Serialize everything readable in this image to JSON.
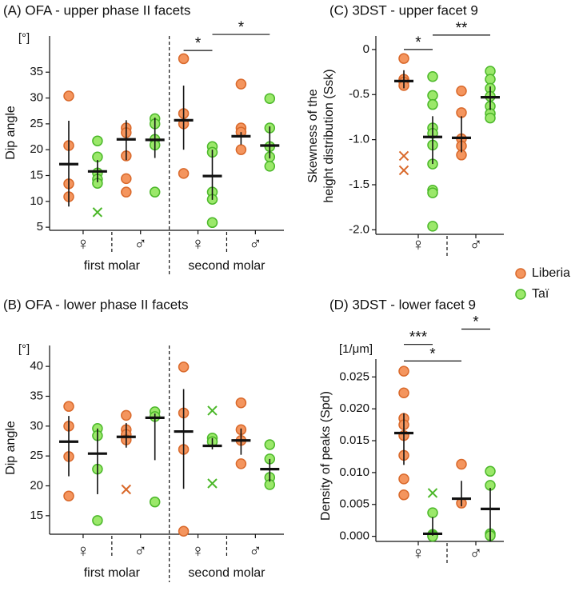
{
  "legend": [
    {
      "name": "Liberia",
      "color": "#f4955e",
      "stroke": "#d9692b"
    },
    {
      "name": "Taï",
      "color": "#9be86a",
      "stroke": "#4cb82a"
    }
  ],
  "chart_data": [
    {
      "type": "dotplot",
      "title": "(A) OFA - upper phase II facets",
      "ylabel": "Dip angle",
      "unit": "[°]",
      "ylim": [
        4.4,
        42
      ],
      "yticks": [
        5,
        10,
        15,
        20,
        25,
        30,
        35
      ],
      "sex_labels": [
        "♀",
        "♂",
        "♀",
        "♂"
      ],
      "molar_labels": [
        "first molar",
        "second molar"
      ],
      "groups": [
        {
          "points": [
            30.4,
            20.8,
            13.4,
            10.9
          ],
          "outliers": [],
          "mean": 17.2,
          "ci": [
            9.0,
            25.6
          ]
        },
        {
          "points": [
            21.7,
            18.6,
            15.5,
            14.3,
            13.5
          ],
          "outliers": [
            7.9
          ],
          "mean": 15.8,
          "ci": [
            13.7,
            18.0
          ]
        },
        {
          "points": [
            24.2,
            23.3,
            18.8,
            14.4,
            11.8
          ],
          "outliers": [],
          "mean": 22.0,
          "ci": [
            18.0,
            25.7
          ]
        },
        {
          "points": [
            26.0,
            25.0,
            22.0,
            20.9,
            11.8
          ],
          "outliers": [],
          "mean": 21.9,
          "ci": [
            18.4,
            26.2
          ]
        },
        {
          "points": [
            37.6,
            27.0,
            25.0,
            15.4
          ],
          "outliers": [],
          "mean": 25.7,
          "ci": [
            20.0,
            32.4
          ]
        },
        {
          "points": [
            20.6,
            19.5,
            11.8,
            10.4,
            5.9
          ],
          "outliers": [],
          "mean": 14.9,
          "ci": [
            10.3,
            20.0
          ]
        },
        {
          "points": [
            32.7,
            24.2,
            23.4,
            20.0
          ],
          "outliers": [],
          "mean": 22.6,
          "ci": [
            21.0,
            23.4
          ]
        },
        {
          "points": [
            29.9,
            24.2,
            20.6,
            18.6,
            16.8
          ],
          "outliers": [],
          "mean": 20.8,
          "ci": [
            18.3,
            24.5
          ]
        }
      ],
      "significance": [
        {
          "label": "*",
          "groups": [
            4,
            5
          ],
          "y": 39.2
        },
        {
          "label": "*",
          "groups": [
            5,
            7
          ],
          "y": 42.3
        }
      ]
    },
    {
      "type": "dotplot",
      "title": "(B) OFA - lower phase II facets",
      "ylabel": "Dip angle",
      "unit": "[°]",
      "ylim": [
        11.9,
        43.5
      ],
      "yticks": [
        15,
        20,
        25,
        30,
        35,
        40
      ],
      "sex_labels": [
        "♀",
        "♂",
        "♀",
        "♂"
      ],
      "molar_labels": [
        "first molar",
        "second molar"
      ],
      "groups": [
        {
          "points": [
            33.3,
            30.0,
            24.9,
            18.3
          ],
          "outliers": [],
          "mean": 27.4,
          "ci": [
            21.6,
            31.7
          ]
        },
        {
          "points": [
            29.6,
            28.4,
            22.8,
            14.2
          ],
          "outliers": [],
          "mean": 25.4,
          "ci": [
            18.6,
            29.6
          ]
        },
        {
          "points": [
            31.8,
            29.4,
            28.6,
            27.7
          ],
          "outliers": [
            19.4
          ],
          "mean": 28.2,
          "ci": [
            26.4,
            30.5
          ]
        },
        {
          "points": [
            32.4,
            31.6,
            17.3
          ],
          "outliers": [],
          "mean": 31.4,
          "ci": [
            24.3,
            32.1
          ]
        },
        {
          "points": [
            39.9,
            32.2,
            26.1,
            12.4
          ],
          "outliers": [],
          "mean": 29.1,
          "ci": [
            19.5,
            36.2
          ]
        },
        {
          "points": [
            28.0,
            27.4
          ],
          "outliers": [
            32.6,
            20.4
          ],
          "mean": 26.7,
          "ci": [
            26.1,
            28.0
          ]
        },
        {
          "points": [
            33.9,
            29.4,
            27.6,
            23.7
          ],
          "outliers": [],
          "mean": 27.6,
          "ci": [
            25.2,
            29.6
          ]
        },
        {
          "points": [
            26.9,
            24.5,
            21.4,
            20.2
          ],
          "outliers": [],
          "mean": 22.8,
          "ci": [
            20.7,
            24.5
          ]
        }
      ],
      "significance": []
    },
    {
      "type": "dotplot",
      "title": "(C) 3DST - upper facet 9",
      "ylabel": [
        "Skewness of the",
        "height distribution (Ssk)"
      ],
      "ylim": [
        -2.05,
        0.15
      ],
      "yticks": [
        {
          "value": -2.0,
          "label": "-2.0"
        },
        -1.5,
        {
          "value": -1.0,
          "label": "-1.0"
        },
        -0.5,
        0
      ],
      "sex_labels": [
        "♀",
        "♂"
      ],
      "groups": [
        {
          "points": [
            -0.1,
            -0.33,
            -0.36,
            -0.4
          ],
          "outliers": [
            -1.18,
            -1.34
          ],
          "mean": -0.35,
          "ci": [
            -0.43,
            -0.23
          ]
        },
        {
          "points": [
            -0.3,
            -0.51,
            -0.61,
            -0.87,
            -0.93,
            -1.06,
            -1.27,
            -1.56,
            -1.59,
            -1.96
          ],
          "outliers": [],
          "mean": -0.97,
          "ci": [
            -1.27,
            -0.74
          ]
        },
        {
          "points": [
            -0.46,
            -0.7,
            -0.99,
            -1.07,
            -1.17
          ],
          "outliers": [],
          "mean": -0.98,
          "ci": [
            -1.14,
            -0.74
          ]
        },
        {
          "points": [
            -0.24,
            -0.33,
            -0.43,
            -0.52,
            -0.63,
            -0.71,
            -0.76
          ],
          "outliers": [],
          "mean": -0.53,
          "ci": [
            -0.67,
            -0.41
          ]
        }
      ],
      "significance": [
        {
          "label": "*",
          "groups": [
            0,
            1
          ],
          "y": 0.0
        },
        {
          "label": "**",
          "groups": [
            1,
            3
          ],
          "y": 0.16
        }
      ]
    },
    {
      "type": "dotplot",
      "title": "(D) 3DST - lower facet 9",
      "ylabel": "Density of peaks (Spd)",
      "unit": "[1/μm]",
      "ylim": [
        -0.0008,
        0.0278
      ],
      "yticks": [
        {
          "value": 0,
          "label": "0.000"
        },
        0.005,
        {
          "value": 0.01,
          "label": "0.010"
        },
        0.015,
        {
          "value": 0.02,
          "label": "0.020"
        },
        0.025
      ],
      "sex_labels": [
        "♀",
        "♂"
      ],
      "groups": [
        {
          "points": [
            0.0259,
            0.0225,
            0.0185,
            0.0175,
            0.0158,
            0.0127,
            0.009,
            0.0065
          ],
          "outliers": [],
          "mean": 0.0162,
          "ci": [
            0.0112,
            0.0193
          ]
        },
        {
          "points": [
            0.0037,
            0.0003,
            0.0001,
            0.0
          ],
          "outliers": [
            0.0068
          ],
          "mean": 0.0004,
          "ci": [
            0.0001,
            0.003
          ]
        },
        {
          "points": [
            0.0113,
            0.0052
          ],
          "outliers": [],
          "mean": 0.0059,
          "ci": [
            0.0047,
            0.0087
          ]
        },
        {
          "points": [
            0.0102,
            0.008,
            0.0004,
            0.0001
          ],
          "outliers": [],
          "mean": 0.0043,
          "ci": [
            -0.0008,
            0.0076
          ]
        }
      ],
      "significance": [
        {
          "label": "*",
          "groups": [
            0,
            2
          ],
          "y": 0.0275
        },
        {
          "label": "***",
          "groups": [
            0,
            1
          ],
          "y": 0.0301
        },
        {
          "label": "*",
          "groups": [
            2,
            3
          ],
          "y": 0.0325
        }
      ]
    }
  ]
}
